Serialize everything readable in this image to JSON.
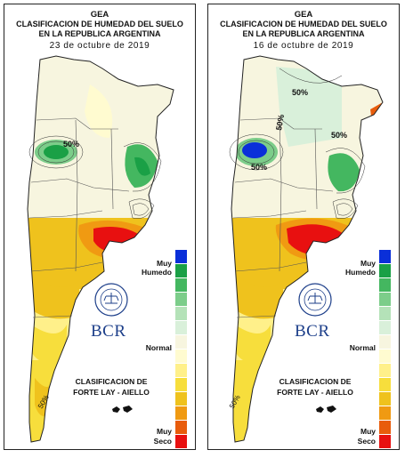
{
  "panels": [
    {
      "title_line1": "GEA",
      "title_line2": "CLASIFICACION DE HUMEDAD DEL SUELO",
      "title_line3": "EN LA REPUBLICA ARGENTINA",
      "date": "23 de octubre de 2019",
      "contour_labels": [
        "50%",
        "50%"
      ],
      "legend_top_line1": "Muy",
      "legend_top_line2": "Humedo",
      "legend_middle": "Normal",
      "legend_bottom_line1": "Muy",
      "legend_bottom_line2": "Seco",
      "method_line1": "CLASIFICACION DE",
      "method_line2": "FORTE LAY - AIELLO",
      "logo_text": "BCR",
      "seal_text": "BOLSA DE COMERCIO DE ROSARIO"
    },
    {
      "title_line1": "GEA",
      "title_line2": "CLASIFICACION DE HUMEDAD DEL SUELO",
      "title_line3": "EN LA REPUBLICA ARGENTINA",
      "date": "16 de octubre de 2019",
      "contour_labels": [
        "50%",
        "50%",
        "50%",
        "50%",
        "50%"
      ],
      "legend_top_line1": "Muy",
      "legend_top_line2": "Humedo",
      "legend_middle": "Normal",
      "legend_bottom_line1": "Muy",
      "legend_bottom_line2": "Seco",
      "method_line1": "CLASIFICACION DE",
      "method_line2": "FORTE LAY - AIELLO",
      "logo_text": "BCR",
      "seal_text": "BOLSA DE COMERCIO DE ROSARIO"
    }
  ],
  "legend_colors": [
    "#0a2fd9",
    "#1aa046",
    "#44b760",
    "#7ccd8a",
    "#b4e2b8",
    "#d9f0da",
    "#f7f5df",
    "#fffbd0",
    "#fff08a",
    "#f7de3c",
    "#efc21d",
    "#f09a12",
    "#e85c0c",
    "#e81010"
  ]
}
